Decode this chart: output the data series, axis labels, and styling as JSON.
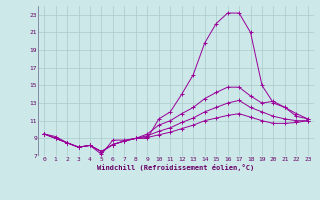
{
  "background_color": "#cce8e8",
  "grid_color": "#aacccc",
  "line_color": "#990099",
  "xlabel": "Windchill (Refroidissement éolien,°C)",
  "xlim": [
    -0.5,
    23.5
  ],
  "ylim": [
    7,
    24
  ],
  "yticks": [
    7,
    9,
    11,
    13,
    15,
    17,
    19,
    21,
    23
  ],
  "xticks": [
    0,
    1,
    2,
    3,
    4,
    5,
    6,
    7,
    8,
    9,
    10,
    11,
    12,
    13,
    14,
    15,
    16,
    17,
    18,
    19,
    20,
    21,
    22,
    23
  ],
  "series": [
    {
      "x": [
        0,
        1,
        2,
        3,
        4,
        5,
        6,
        7,
        8,
        9,
        10,
        11,
        12,
        13,
        14,
        15,
        16,
        17,
        18,
        19,
        20,
        21,
        22,
        23
      ],
      "y": [
        9.5,
        9.2,
        8.5,
        8.0,
        8.2,
        7.2,
        8.8,
        8.8,
        9.0,
        9.0,
        11.2,
        12.0,
        14.0,
        16.2,
        19.8,
        22.0,
        23.2,
        23.2,
        21.0,
        15.0,
        13.0,
        12.5,
        11.5,
        11.2
      ]
    },
    {
      "x": [
        0,
        1,
        2,
        3,
        4,
        5,
        6,
        7,
        8,
        9,
        10,
        11,
        12,
        13,
        14,
        15,
        16,
        17,
        18,
        19,
        20,
        21,
        22,
        23
      ],
      "y": [
        9.5,
        9.0,
        8.5,
        8.0,
        8.2,
        7.5,
        8.3,
        8.7,
        9.0,
        9.5,
        10.5,
        11.0,
        11.8,
        12.5,
        13.5,
        14.2,
        14.8,
        14.8,
        13.8,
        13.0,
        13.2,
        12.5,
        11.8,
        11.2
      ]
    },
    {
      "x": [
        0,
        1,
        2,
        3,
        4,
        5,
        6,
        7,
        8,
        9,
        10,
        11,
        12,
        13,
        14,
        15,
        16,
        17,
        18,
        19,
        20,
        21,
        22,
        23
      ],
      "y": [
        9.5,
        9.0,
        8.5,
        8.0,
        8.2,
        7.5,
        8.3,
        8.7,
        9.0,
        9.3,
        9.8,
        10.2,
        10.8,
        11.3,
        12.0,
        12.5,
        13.0,
        13.3,
        12.5,
        12.0,
        11.5,
        11.2,
        11.0,
        11.0
      ]
    },
    {
      "x": [
        0,
        1,
        2,
        3,
        4,
        5,
        6,
        7,
        8,
        9,
        10,
        11,
        12,
        13,
        14,
        15,
        16,
        17,
        18,
        19,
        20,
        21,
        22,
        23
      ],
      "y": [
        9.5,
        9.0,
        8.5,
        8.0,
        8.2,
        7.5,
        8.3,
        8.7,
        9.0,
        9.1,
        9.4,
        9.7,
        10.1,
        10.5,
        11.0,
        11.3,
        11.6,
        11.8,
        11.4,
        11.0,
        10.7,
        10.7,
        10.8,
        11.0
      ]
    }
  ]
}
